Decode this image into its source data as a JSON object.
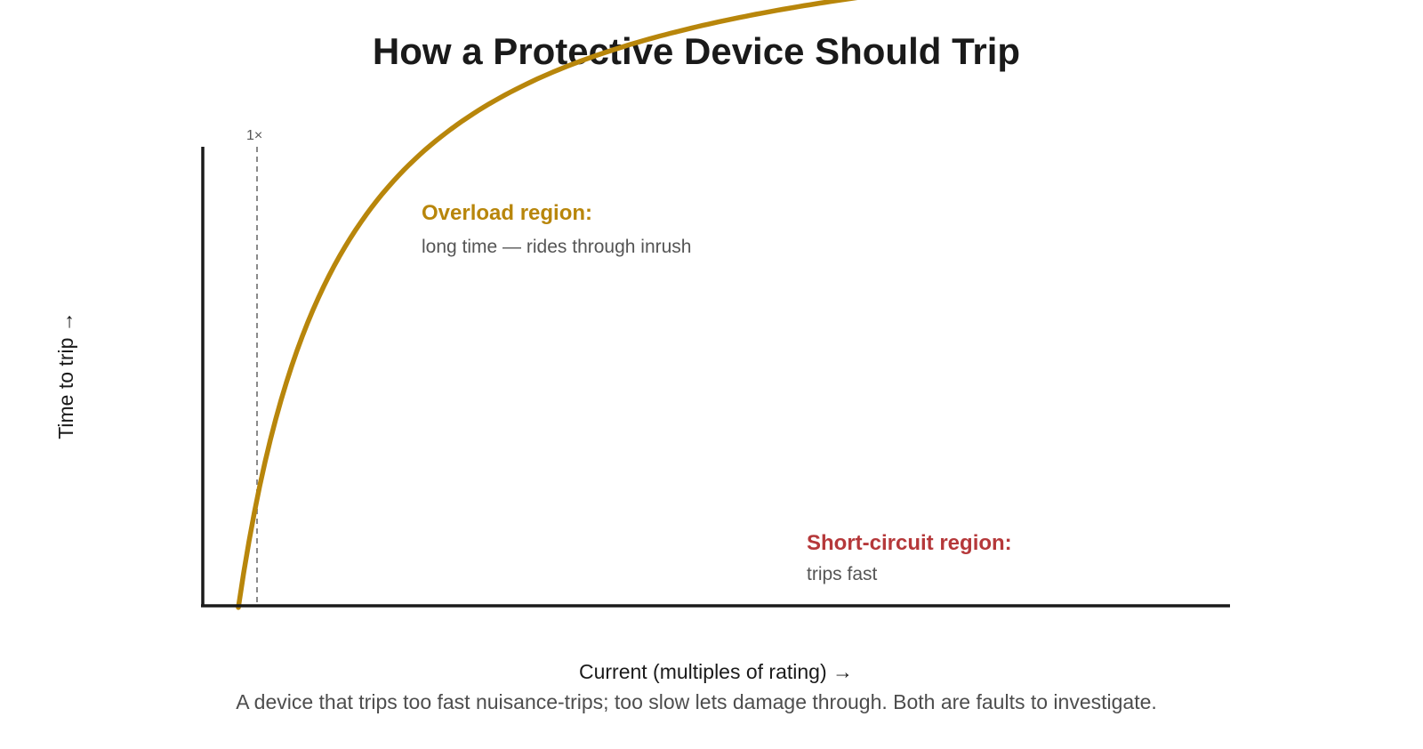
{
  "title": "How a Protective Device Should Trip",
  "axes": {
    "x_label": "Current (multiples of rating) →",
    "y_label": "Time to trip →"
  },
  "marker": {
    "label": "1×"
  },
  "regions": {
    "overload": {
      "heading": "Overload region:",
      "detail": "long time — rides through inrush"
    },
    "short_circuit": {
      "heading": "Short-circuit region:",
      "detail": "trips fast"
    }
  },
  "caption": "A device that trips too fast nuisance-trips; too slow lets damage through. Both are faults to investigate.",
  "colors": {
    "curve": "#b8860b",
    "overload_heading": "#b8860b",
    "short_circuit_heading": "#b5383a",
    "axis": "#1a1a1a",
    "marker_line": "#8a8a8a",
    "detail_text": "#555555"
  }
}
